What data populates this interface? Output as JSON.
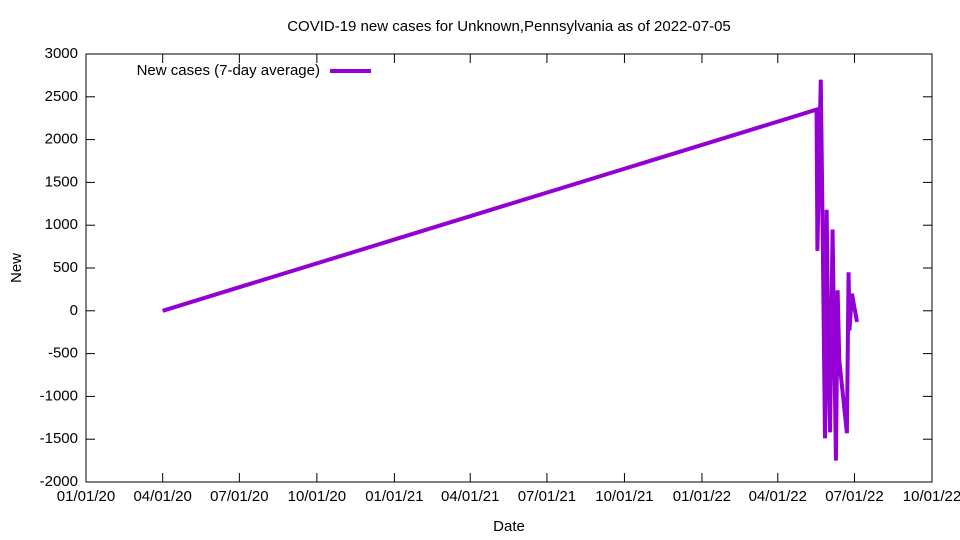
{
  "chart_data": {
    "type": "line",
    "title": "COVID-19 new cases for Unknown,Pennsylvania as of 2022-07-05",
    "x_label": "Date",
    "y_label": "New",
    "legend": "top left",
    "x": [
      "2020-04-01",
      "2022-05-17",
      "2022-05-18",
      "2022-05-22",
      "2022-05-24",
      "2022-05-27",
      "2022-05-29",
      "2022-05-31",
      "2022-06-02",
      "2022-06-05",
      "2022-06-09",
      "2022-06-11",
      "2022-06-13",
      "2022-06-22",
      "2022-06-24",
      "2022-06-25",
      "2022-06-28",
      "2022-07-04"
    ],
    "series": [
      {
        "name": "New cases (7-day average)",
        "color": "#9400d3",
        "values": [
          0,
          2350,
          700,
          2700,
          1120,
          -1490,
          1180,
          -575,
          -1420,
          950,
          -1750,
          240,
          -580,
          -1430,
          450,
          -230,
          200,
          -130
        ]
      }
    ],
    "xlim": [
      "2020-01-01",
      "2022-10-01"
    ],
    "xticks": [
      {
        "value": "2020-01-01",
        "label": "01/01/20"
      },
      {
        "value": "2020-04-01",
        "label": "04/01/20"
      },
      {
        "value": "2020-07-01",
        "label": "07/01/20"
      },
      {
        "value": "2020-10-01",
        "label": "10/01/20"
      },
      {
        "value": "2021-01-01",
        "label": "01/01/21"
      },
      {
        "value": "2021-04-01",
        "label": "04/01/21"
      },
      {
        "value": "2021-07-01",
        "label": "07/01/21"
      },
      {
        "value": "2021-10-01",
        "label": "10/01/21"
      },
      {
        "value": "2022-01-01",
        "label": "01/01/22"
      },
      {
        "value": "2022-04-01",
        "label": "04/01/22"
      },
      {
        "value": "2022-07-01",
        "label": "07/01/22"
      },
      {
        "value": "2022-10-01",
        "label": "10/01/22"
      }
    ],
    "ylim": [
      -2000,
      3000
    ],
    "yticks": [
      -2000,
      -1500,
      -1000,
      -500,
      0,
      500,
      1000,
      1500,
      2000,
      2500,
      3000
    ],
    "grid": false
  }
}
